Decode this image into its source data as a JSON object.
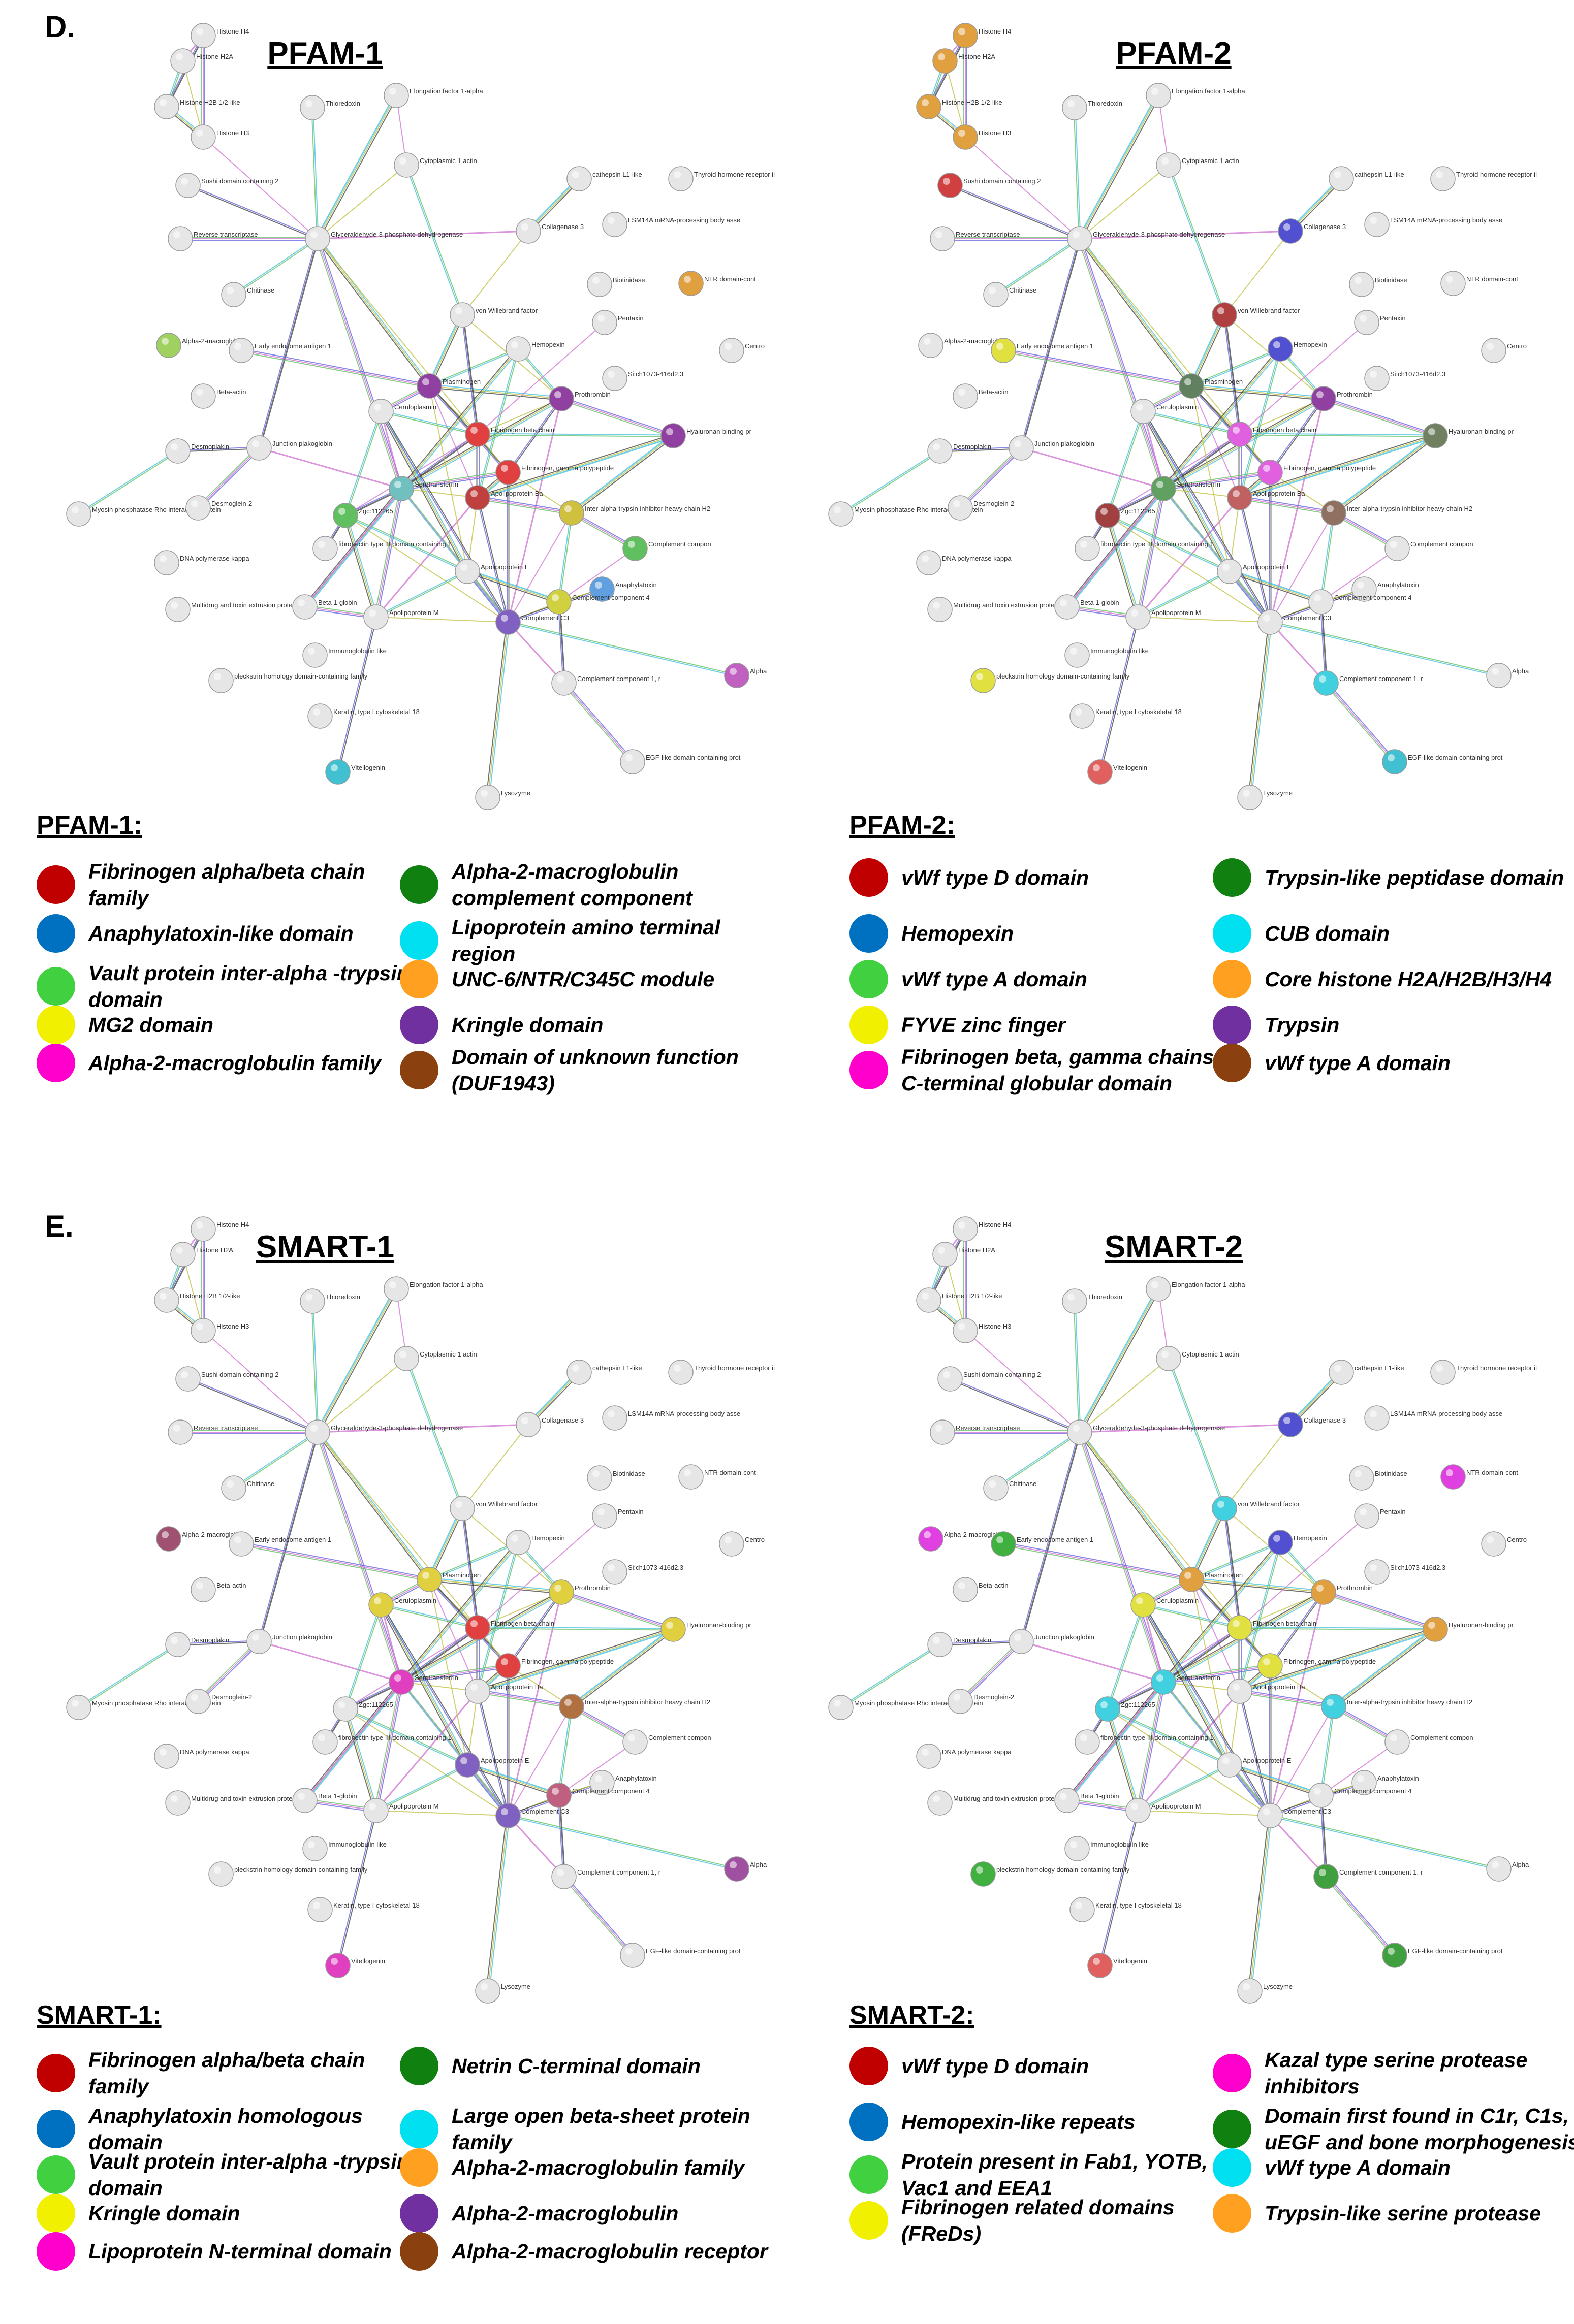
{
  "section_d": {
    "letter": "D."
  },
  "section_e": {
    "letter": "E."
  },
  "proteins": [
    "Histone H4",
    "Histone H2A",
    "Histone H2B 1/2-like",
    "Histone H3",
    "Thioredoxin",
    "Elongation factor 1-alpha",
    "Cytoplasmic 1 actin",
    "Sushi domain containing 2",
    "cathepsin L1-like",
    "Thyroid hormone receptor ii",
    "Reverse transcriptase",
    "Glyceraldehyde-3-phosphate dehydrogenase",
    "Collagenase 3",
    "LSM14A mRNA-processing body asse",
    "Chitinase",
    "Biotinidase",
    "NTR domain-cont",
    "von Willebrand factor",
    "Alpha-2-macroglobulin",
    "Pentaxin",
    "Early endosome antigen 1",
    "Hemopexin",
    "Centro",
    "Beta-actin",
    "Plasminogen",
    "Si:ch1073-416d2.3",
    "Ceruloplasmin",
    "Prothrombin",
    "Fibrinogen beta chain",
    "Desmoplakin",
    "Junction plakoglobin",
    "Hyaluronan-binding pr",
    "Fibrinogen, gamma polypeptide",
    "Myosin phosphatase Rho interacting protein",
    "Desmoglein-2",
    "Serotransferrin",
    "Apolipoprotein Ba",
    "Zgc:112265",
    "Inter-alpha-trypsin inhibitor heavy chain H2",
    "DNA polymerase kappa",
    "fibronectin type III domain containing 1",
    "Complement compon",
    "Apolipoprotein E",
    "Anaphylatoxin",
    "Multidrug and toxin extrusion protein",
    "Beta 1-globin",
    "Complement component 4",
    "Apolipoprotein M",
    "Complement C3",
    "Immunoglobulin like",
    "pleckstrin homology domain-containing family",
    "Alpha",
    "Complement component 1, r",
    "Keratin, type I cytoskeletal 18",
    "EGF-like domain-containing prot",
    "Vitellogenin",
    "Lysozyme"
  ],
  "panels": [
    {
      "title": "PFAM-1",
      "legend_title": "PFAM-1:",
      "legend": [
        {
          "label": "Fibrinogen alpha/beta chain family",
          "color": "#c00000"
        },
        {
          "label": "Anaphylatoxin-like domain",
          "color": "#0070c0"
        },
        {
          "label": "Vault protein inter-alpha -trypsin domain",
          "color": "#40d040"
        },
        {
          "label": "MG2 domain",
          "color": "#f0f000"
        },
        {
          "label": "Alpha-2-macroglobulin family",
          "color": "#ff00cc"
        },
        {
          "label": "Alpha-2-macroglobulin complement component",
          "color": "#108010"
        },
        {
          "label": "Lipoprotein amino terminal region",
          "color": "#00e0f0"
        },
        {
          "label": "UNC-6/NTR/C345C module",
          "color": "#ffa020"
        },
        {
          "label": "Kringle domain",
          "color": "#7030a0"
        },
        {
          "label": "Domain of unknown function (DUF1943)",
          "color": "#8b4010"
        }
      ],
      "node_colors": {
        "NTR domain-cont": "#e0a040",
        "Alpha-2-macroglobulin": "#a0d060",
        "Plasminogen": "#9040a0",
        "Prothrombin": "#9040a0",
        "Hyaluronan-binding pr": "#9040a0",
        "Fibrinogen beta chain": "#e04040",
        "Fibrinogen, gamma polypeptide": "#e04040",
        "Serotransferrin": "#70c0c0",
        "Apolipoprotein Ba": "#c04040",
        "Inter-alpha-trypsin inhibitor heavy chain H2": "#d0c040",
        "Zgc:112265": "#60c060",
        "Complement compon": "#60c060",
        "Complement component 4": "#d0d040",
        "Complement C3": "#8060c0",
        "Anaphylatoxin": "#60a0e0",
        "Alpha": "#c060c0",
        "Vitellogenin": "#40c0d0"
      }
    },
    {
      "title": "PFAM-2",
      "legend_title": "PFAM-2:",
      "legend": [
        {
          "label": "vWf type D domain",
          "color": "#c00000"
        },
        {
          "label": "Hemopexin",
          "color": "#0070c0"
        },
        {
          "label": "vWf type A domain",
          "color": "#40d040"
        },
        {
          "label": "FYVE zinc finger",
          "color": "#f0f000"
        },
        {
          "label": "Fibrinogen beta, gamma chains, C-terminal globular domain",
          "color": "#ff00cc"
        },
        {
          "label": "Trypsin-like peptidase domain",
          "color": "#108010"
        },
        {
          "label": "CUB domain",
          "color": "#00e0f0"
        },
        {
          "label": "Core histone H2A/H2B/H3/H4",
          "color": "#ffa020"
        },
        {
          "label": "Trypsin",
          "color": "#7030a0"
        },
        {
          "label": "vWf type A domain",
          "color": "#8b4010"
        }
      ],
      "node_colors": {
        "Histone H2A": "#e0a040",
        "Histone H2B 1/2-like": "#e0a040",
        "Histone H3": "#e0a040",
        "Histone H4": "#e0a040",
        "Sushi domain containing 2": "#d04040",
        "Collagenase 3": "#5050d0",
        "von Willebrand factor": "#b04040",
        "Hemopexin": "#5050d0",
        "Early endosome antigen 1": "#e0e040",
        "Plasminogen": "#608060",
        "Prothrombin": "#9040a0",
        "Hyaluronan-binding pr": "#708060",
        "Fibrinogen beta chain": "#e060e0",
        "Fibrinogen, gamma polypeptide": "#e060e0",
        "Apolipoprotein Ba": "#c06060",
        "Serotransferrin": "#60a060",
        "Inter-alpha-trypsin inhibitor heavy chain H2": "#907060",
        "Complement component 1, r": "#40d0e0",
        "pleckstrin homology domain-containing family": "#e0e040",
        "Vitellogenin": "#e06060",
        "EGF-like domain-containing prot": "#40c0d0",
        "Zgc:112265": "#a04040"
      }
    },
    {
      "title": "SMART-1",
      "legend_title": "SMART-1:",
      "legend": [
        {
          "label": "Fibrinogen alpha/beta chain family",
          "color": "#c00000"
        },
        {
          "label": "Anaphylatoxin homologous domain",
          "color": "#0070c0"
        },
        {
          "label": "Vault protein inter-alpha -trypsin domain",
          "color": "#40d040"
        },
        {
          "label": "Kringle domain",
          "color": "#f0f000"
        },
        {
          "label": "Lipoprotein N-terminal domain",
          "color": "#ff00cc"
        },
        {
          "label": "Netrin C-terminal domain",
          "color": "#108010"
        },
        {
          "label": "Large open beta-sheet protein family",
          "color": "#00e0f0"
        },
        {
          "label": "Alpha-2-macroglobulin family",
          "color": "#ffa020"
        },
        {
          "label": "Alpha-2-macroglobulin",
          "color": "#7030a0"
        },
        {
          "label": "Alpha-2-macroglobulin receptor",
          "color": "#8b4010"
        }
      ],
      "node_colors": {
        "Alpha-2-macroglobulin": "#a05070",
        "Plasminogen": "#e0d040",
        "Prothrombin": "#e0d040",
        "Hyaluronan-binding pr": "#e0d040",
        "Fibrinogen beta chain": "#e04040",
        "Fibrinogen, gamma polypeptide": "#e04040",
        "Ceruloplasmin": "#e0d040",
        "Serotransferrin": "#e040c0",
        "Inter-alpha-trypsin inhibitor heavy chain H2": "#b07040",
        "Complement component 4": "#c06080",
        "Complement C3": "#8060c0",
        "Apolipoprotein E": "#8060c0",
        "Alpha": "#a050a0",
        "Vitellogenin": "#e040c0"
      }
    },
    {
      "title": "SMART-2",
      "legend_title": "SMART-2:",
      "legend": [
        {
          "label": "vWf type D domain",
          "color": "#c00000"
        },
        {
          "label": "Hemopexin-like repeats",
          "color": "#0070c0"
        },
        {
          "label": "Protein present in Fab1, YOTB, Vac1 and EEA1",
          "color": "#40d040"
        },
        {
          "label": "Fibrinogen related domains (FReDs)",
          "color": "#f0f000"
        },
        {
          "label": "Kazal type serine protease inhibitors",
          "color": "#ff00cc"
        },
        {
          "label": "Domain first found in C1r, C1s, uEGF and bone morphogenesis",
          "color": "#108010"
        },
        {
          "label": "vWf type A domain",
          "color": "#00e0f0"
        },
        {
          "label": "Trypsin-like serine protease",
          "color": "#ffa020"
        }
      ],
      "node_colors": {
        "Collagenase 3": "#5050d0",
        "von Willebrand factor": "#40d0e0",
        "Hemopexin": "#5050d0",
        "NTR domain-cont": "#e040e0",
        "Alpha-2-macroglobulin": "#e040e0",
        "Early endosome antigen 1": "#40b040",
        "Plasminogen": "#e0a040",
        "Prothrombin": "#e0a040",
        "Hyaluronan-binding pr": "#e0a040",
        "Fibrinogen beta chain": "#e0e040",
        "Fibrinogen, gamma polypeptide": "#e0e040",
        "Ceruloplasmin": "#e0e040",
        "Serotransferrin": "#40d0e0",
        "Inter-alpha-trypsin inhibitor heavy chain H2": "#40d0e0",
        "Zgc:112265": "#40d0e0",
        "pleckstrin homology domain-containing family": "#40b040",
        "Complement component 1, r": "#40a040",
        "EGF-like domain-containing prot": "#40a040",
        "Vitellogenin": "#e06060"
      }
    }
  ]
}
